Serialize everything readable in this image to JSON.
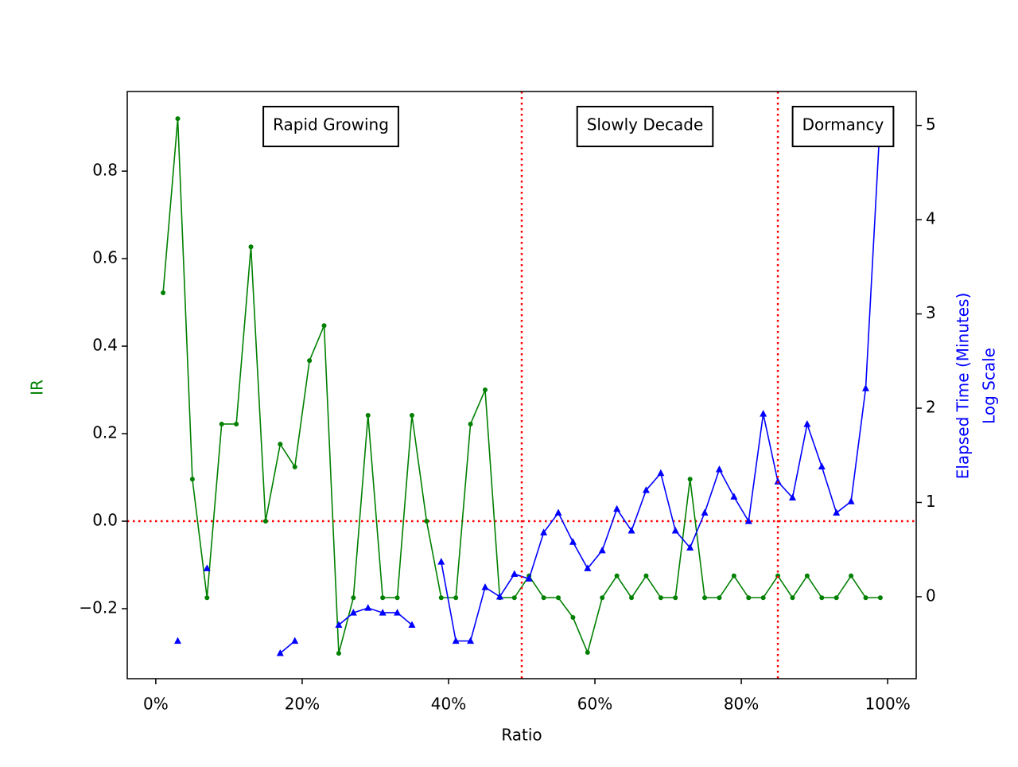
{
  "chart_data": {
    "type": "line",
    "x_label": "Ratio",
    "y_label": "IR",
    "y2_label": [
      "Elapsed Time (Minutes)",
      "Log Scale"
    ],
    "x": [
      1,
      3,
      5,
      7,
      9,
      11,
      13,
      15,
      17,
      19,
      21,
      23,
      25,
      27,
      29,
      31,
      33,
      35,
      37,
      39,
      41,
      43,
      45,
      47,
      49,
      51,
      53,
      55,
      57,
      59,
      61,
      63,
      65,
      67,
      69,
      71,
      73,
      75,
      77,
      79,
      81,
      83,
      85,
      87,
      89,
      91,
      93,
      95,
      97,
      99
    ],
    "series": [
      {
        "color": "green",
        "axis": "y",
        "marker": "circle",
        "values": [
          0.522,
          0.92,
          0.096,
          -0.175,
          0.222,
          0.222,
          0.627,
          0,
          0.176,
          0.124,
          0.367,
          0.447,
          -0.302,
          -0.175,
          0.242,
          -0.175,
          -0.175,
          0.242,
          0,
          -0.175,
          -0.175,
          0.222,
          0.3,
          -0.175,
          -0.175,
          -0.125,
          -0.175,
          -0.175,
          -0.22,
          -0.3,
          -0.175,
          -0.125,
          -0.175,
          -0.125,
          -0.175,
          -0.175,
          0.096,
          -0.175,
          -0.175,
          -0.125,
          -0.175,
          -0.175,
          -0.125,
          -0.175,
          -0.125,
          -0.175,
          -0.175,
          -0.125,
          -0.175,
          -0.175
        ]
      },
      {
        "color": "blue",
        "axis": "y2",
        "marker": "triangle",
        "values": [
          null,
          -0.47,
          null,
          0.3,
          null,
          null,
          null,
          null,
          -0.6,
          -0.47,
          null,
          null,
          -0.3,
          -0.17,
          -0.12,
          -0.17,
          -0.17,
          -0.3,
          null,
          0.37,
          -0.47,
          -0.47,
          0.1,
          0,
          0.24,
          0.19,
          0.68,
          0.89,
          0.58,
          0.3,
          0.49,
          0.93,
          0.7,
          1.13,
          1.31,
          0.7,
          0.52,
          0.89,
          1.35,
          1.06,
          0.8,
          1.94,
          1.22,
          1.05,
          1.83,
          1.38,
          0.89,
          1.01,
          2.21,
          5.08
        ]
      }
    ],
    "xlim": [
      -3.9,
      103.9
    ],
    "xticks": [
      {
        "value": 0,
        "label": "0%"
      },
      {
        "value": 20,
        "label": "20%"
      },
      {
        "value": 40,
        "label": "40%"
      },
      {
        "value": 60,
        "label": "60%"
      },
      {
        "value": 80,
        "label": "80%"
      },
      {
        "value": 100,
        "label": "100%"
      }
    ],
    "ylim": [
      -0.36,
      0.982
    ],
    "yticks": [
      {
        "value": -0.2,
        "label": "−0.2"
      },
      {
        "value": 0,
        "label": "0.0"
      },
      {
        "value": 0.2,
        "label": "0.2"
      },
      {
        "value": 0.4,
        "label": "0.4"
      },
      {
        "value": 0.6,
        "label": "0.6"
      },
      {
        "value": 0.8,
        "label": "0.8"
      }
    ],
    "y2lim": [
      -0.87,
      5.36
    ],
    "y2ticks": [
      0,
      1,
      2,
      3,
      4,
      5
    ],
    "reference_lines": {
      "color": "red",
      "x": [
        50,
        85
      ],
      "y": [
        0
      ]
    },
    "annotations": [
      "Rapid Growing",
      "Slowly Decade",
      "Dormancy"
    ],
    "grid": false
  }
}
